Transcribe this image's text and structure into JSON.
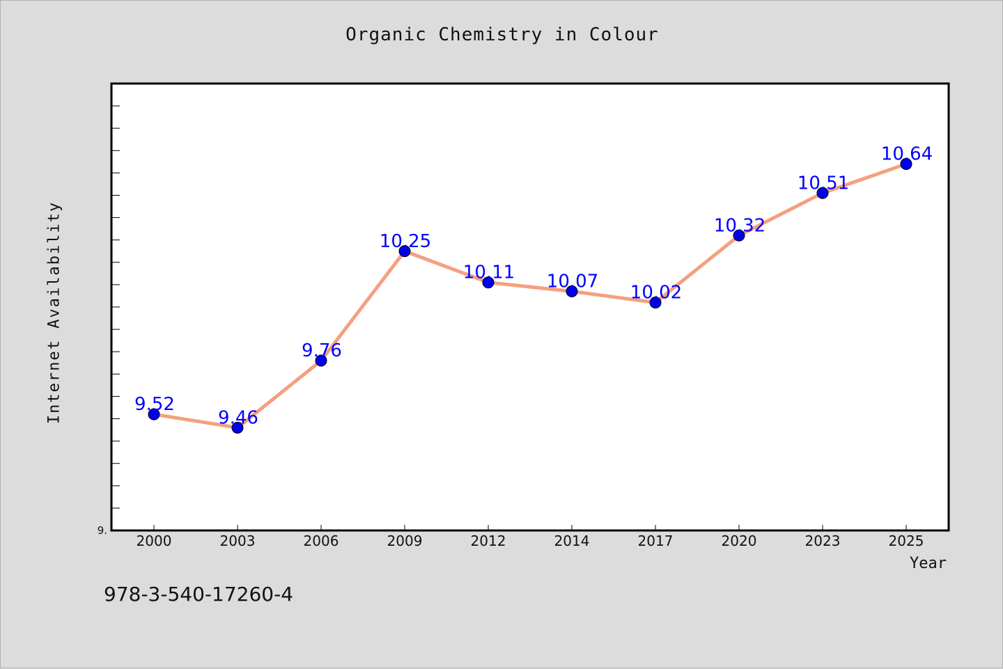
{
  "title": "Organic Chemistry in Colour",
  "footer_text": "978-3-540-17260-4",
  "chart_data": {
    "type": "line",
    "title": "Organic Chemistry in Colour",
    "xlabel": "Year",
    "ylabel": "Internet Availability",
    "categories": [
      "2000",
      "2003",
      "2006",
      "2009",
      "2012",
      "2014",
      "2017",
      "2020",
      "2023",
      "2025"
    ],
    "series": [
      {
        "values": [
          9.52,
          9.46,
          9.76,
          10.25,
          10.11,
          10.07,
          10.02,
          10.32,
          10.51,
          10.64
        ],
        "line_color": "#f4a080",
        "marker_color": "#0000ee"
      }
    ],
    "data_labels": [
      "9.52",
      "9.46",
      "9.76",
      "10.25",
      "10.11",
      "10.07",
      "10.02",
      "10.32",
      "10.51",
      "10.64"
    ],
    "y_tick_label": "9.",
    "ylim": [
      9.0,
      11.0
    ],
    "grid": false,
    "legend": "none"
  }
}
